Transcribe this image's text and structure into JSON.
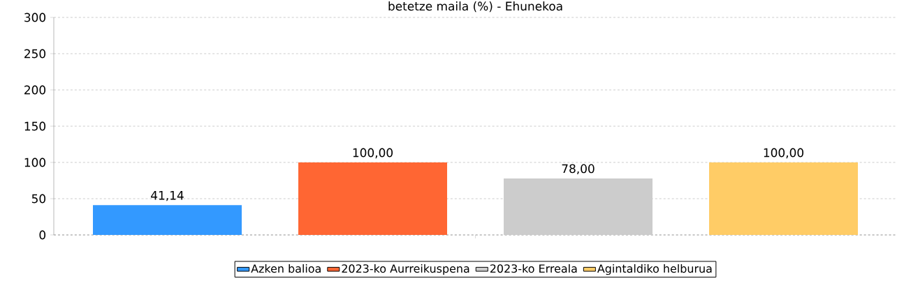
{
  "chart_data": {
    "type": "bar",
    "title": "betetze maila (%) - Ehunekoa",
    "categories": [
      null
    ],
    "series": [
      {
        "name": "Azken balioa",
        "color": "#3399ff",
        "values": [
          41.14
        ],
        "value_labels": [
          "41,14"
        ]
      },
      {
        "name": "2023-ko Aurreikuspena",
        "color": "#ff6633",
        "values": [
          100
        ],
        "value_labels": [
          "100,00"
        ]
      },
      {
        "name": "2023-ko Erreala",
        "color": "#cccccc",
        "values": [
          78
        ],
        "value_labels": [
          "78,00"
        ]
      },
      {
        "name": "Agintaldiko helburua",
        "color": "#ffcc66",
        "values": [
          100
        ],
        "value_labels": [
          "100,00"
        ]
      }
    ],
    "ylim": [
      0,
      300
    ],
    "yticks": [
      0,
      50,
      100,
      150,
      200,
      250,
      300
    ],
    "grid": "y",
    "legend": "bottom"
  }
}
